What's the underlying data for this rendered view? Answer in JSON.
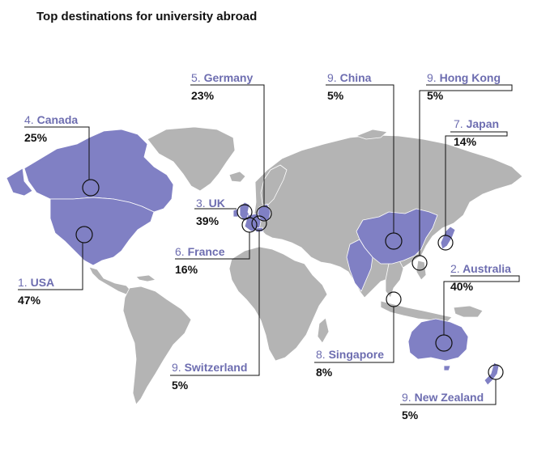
{
  "title": "Top destinations for university abroad",
  "colors": {
    "land": "#b4b4b4",
    "highlight": "#8080c4",
    "label": "#6d6db0",
    "border": "#ffffff",
    "leader": "#111111"
  },
  "destinations": [
    {
      "rank": "1.",
      "name": "USA",
      "percent": "47%"
    },
    {
      "rank": "2.",
      "name": "Australia",
      "percent": "40%"
    },
    {
      "rank": "3.",
      "name": "UK",
      "percent": "39%"
    },
    {
      "rank": "4.",
      "name": "Canada",
      "percent": "25%"
    },
    {
      "rank": "5.",
      "name": "Germany",
      "percent": "23%"
    },
    {
      "rank": "6.",
      "name": "France",
      "percent": "16%"
    },
    {
      "rank": "7.",
      "name": "Japan",
      "percent": "14%"
    },
    {
      "rank": "8.",
      "name": "Singapore",
      "percent": "8%"
    },
    {
      "rank": "9.",
      "name": "China",
      "percent": "5%"
    },
    {
      "rank": "9.",
      "name": "Hong Kong",
      "percent": "5%"
    },
    {
      "rank": "9.",
      "name": "Switzerland",
      "percent": "5%"
    },
    {
      "rank": "9.",
      "name": "New Zealand",
      "percent": "5%"
    }
  ]
}
